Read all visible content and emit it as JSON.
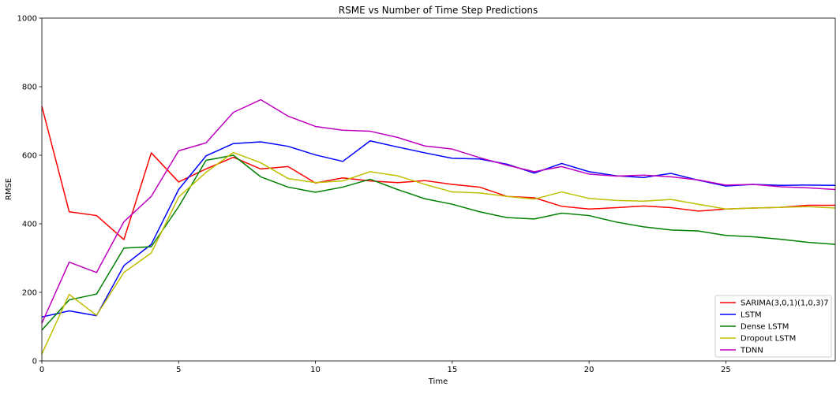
{
  "chart_data": {
    "type": "line",
    "title": "RSME vs Number of Time Step Predictions",
    "xlabel": "Time",
    "ylabel": "RMSE",
    "xlim": [
      0,
      29
    ],
    "ylim": [
      0,
      1000
    ],
    "xticks": [
      0,
      5,
      10,
      15,
      20,
      25
    ],
    "yticks": [
      0,
      200,
      400,
      600,
      800,
      1000
    ],
    "grid": false,
    "legend_position": "bottom-right",
    "x": [
      0,
      1,
      2,
      3,
      4,
      5,
      6,
      7,
      8,
      9,
      10,
      11,
      12,
      13,
      14,
      15,
      16,
      17,
      18,
      19,
      20,
      21,
      22,
      23,
      24,
      25,
      26,
      27,
      28,
      29
    ],
    "series": [
      {
        "name": "SARIMA(3,0,1)(1,0,3)7",
        "color": "#ff0000",
        "values": [
          743,
          435,
          424,
          354,
          607,
          522,
          560,
          594,
          560,
          567,
          519,
          534,
          525,
          520,
          526,
          515,
          507,
          480,
          476,
          451,
          443,
          447,
          452,
          447,
          437,
          443,
          446,
          448,
          454,
          454
        ]
      },
      {
        "name": "LSTM",
        "color": "#0000ff",
        "values": [
          128,
          146,
          132,
          278,
          340,
          500,
          598,
          634,
          639,
          626,
          601,
          582,
          642,
          624,
          607,
          591,
          589,
          574,
          548,
          576,
          552,
          540,
          535,
          547,
          527,
          510,
          515,
          512,
          513,
          512
        ]
      },
      {
        "name": "Dense LSTM",
        "color": "#008000",
        "values": [
          90,
          178,
          195,
          329,
          333,
          450,
          585,
          600,
          537,
          507,
          492,
          507,
          530,
          500,
          473,
          457,
          435,
          418,
          414,
          431,
          424,
          405,
          391,
          382,
          379,
          366,
          362,
          355,
          346,
          340
        ]
      },
      {
        "name": "Dropout LSTM",
        "color": "#bfbf00",
        "values": [
          20,
          194,
          133,
          258,
          315,
          478,
          550,
          608,
          578,
          532,
          520,
          525,
          552,
          540,
          515,
          493,
          490,
          480,
          472,
          493,
          474,
          468,
          466,
          471,
          457,
          443,
          446,
          448,
          450,
          446
        ]
      },
      {
        "name": "TDNN",
        "color": "#bf00bf",
        "values": [
          110,
          288,
          258,
          406,
          480,
          613,
          636,
          725,
          762,
          714,
          684,
          673,
          670,
          652,
          627,
          618,
          593,
          571,
          552,
          567,
          545,
          539,
          542,
          537,
          528,
          513,
          515,
          508,
          505,
          500
        ]
      }
    ]
  }
}
